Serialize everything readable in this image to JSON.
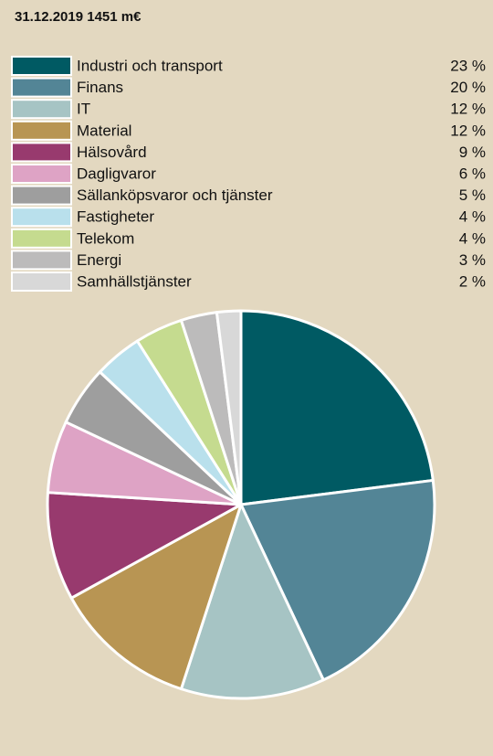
{
  "chart_data": {
    "type": "pie",
    "title": "31.12.2019 1451 m€",
    "categories": [
      "Industri och transport",
      "Finans",
      "IT",
      "Material",
      "Hälsovård",
      "Dagligvaror",
      "Sällanköpsvaror och tjänster",
      "Fastigheter",
      "Telekom",
      "Energi",
      "Samhällstjänster"
    ],
    "values": [
      23,
      20,
      12,
      12,
      9,
      6,
      5,
      4,
      4,
      3,
      2
    ],
    "value_labels": [
      "23 %",
      "20 %",
      "12 %",
      "12 %",
      "9 %",
      "6 %",
      "5 %",
      "4 %",
      "4 %",
      "3 %",
      "2 %"
    ],
    "colors": [
      "#005a63",
      "#538596",
      "#a6c4c4",
      "#b89553",
      "#983a6e",
      "#dea3c5",
      "#9e9e9e",
      "#b9e0ec",
      "#c5db8f",
      "#bcbbbb",
      "#d8d8d8"
    ],
    "legend": "top"
  }
}
